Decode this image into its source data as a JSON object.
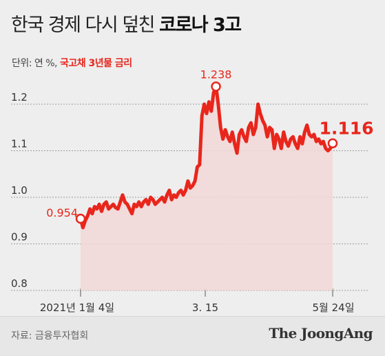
{
  "header": {
    "title_light": "한국 경제 다시 덮친",
    "title_bold": "코로나 3고",
    "unit_prefix": "단위: 연 %,",
    "unit_series": "국고채 3년물 금리"
  },
  "footer": {
    "source": "자료: 금융투자협회",
    "brand": "The JoongAng"
  },
  "colors": {
    "line": "#e8261c",
    "area": "#f2d7d7",
    "background": "#eeeeee",
    "grid": "#9a9a9a"
  },
  "chart_data": {
    "type": "area",
    "ylim": [
      0.8,
      1.25
    ],
    "yticks": [
      0.8,
      0.9,
      1.0,
      1.1,
      1.2
    ],
    "ytick_labels": [
      "0.8",
      "0.9",
      "1.0",
      "1.1",
      "1.2"
    ],
    "xtick_labels": [
      "2021년 1월 4일",
      "3. 15",
      "5월 24일"
    ],
    "annotations": [
      {
        "label": "0.954",
        "value": 0.954,
        "at": "start"
      },
      {
        "label": "1.238",
        "value": 1.238,
        "at": "max"
      },
      {
        "label": "1.116",
        "value": 1.116,
        "at": "end"
      }
    ],
    "series": [
      {
        "values": [
          0.954,
          0.935,
          0.95,
          0.96,
          0.975,
          0.965,
          0.98,
          0.975,
          0.985,
          0.97,
          0.985,
          0.99,
          0.975,
          0.98,
          0.985,
          0.978,
          0.975,
          0.99,
          1.005,
          0.99,
          0.985,
          0.975,
          0.965,
          0.985,
          0.98,
          0.99,
          0.98,
          0.99,
          0.995,
          0.985,
          1.0,
          0.995,
          0.985,
          0.99,
          0.995,
          1.0,
          0.99,
          1.005,
          1.015,
          0.995,
          1.005,
          1.0,
          1.01,
          1.015,
          1.005,
          1.015,
          1.035,
          1.02,
          1.025,
          1.035,
          1.065,
          1.07,
          1.175,
          1.2,
          1.18,
          1.205,
          1.185,
          1.225,
          1.238,
          1.2,
          1.15,
          1.125,
          1.145,
          1.13,
          1.12,
          1.14,
          1.115,
          1.095,
          1.135,
          1.145,
          1.13,
          1.12,
          1.15,
          1.16,
          1.135,
          1.15,
          1.2,
          1.18,
          1.165,
          1.155,
          1.13,
          1.15,
          1.145,
          1.105,
          1.135,
          1.125,
          1.105,
          1.14,
          1.12,
          1.11,
          1.125,
          1.13,
          1.115,
          1.105,
          1.13,
          1.115,
          1.14,
          1.155,
          1.135,
          1.13,
          1.135,
          1.12,
          1.125,
          1.115,
          1.12,
          1.105,
          1.1,
          1.105,
          1.116
        ]
      }
    ]
  }
}
